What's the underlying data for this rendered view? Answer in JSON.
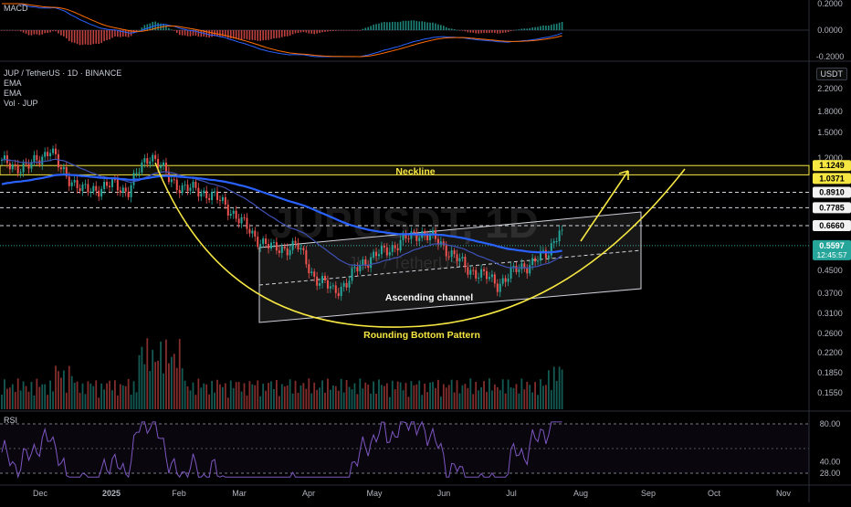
{
  "window": {
    "symbol_title": "JUP / TetherUS · 1D · BINANCE",
    "currency_badge": "USDT"
  },
  "indicators": {
    "ema1": "EMA",
    "ema2": "EMA",
    "volume": "Vol · JUP",
    "macd": "MACD",
    "rsi": "RSI"
  },
  "watermark": {
    "main": "JUPUSDT, 1D",
    "sub": "JUP / TetherUS"
  },
  "annotations": {
    "neckline": "Neckline",
    "ascending_channel": "Ascending channel",
    "rounding_bottom": "Rounding Bottom Pattern"
  },
  "colors": {
    "up": "#26a69a",
    "down": "#ef5350",
    "ema_slow": "#2962ff",
    "ema_fast": "#3f51b5",
    "annotation": "#f5e642",
    "rsi_line": "#7e57c2",
    "price_badge": "#26a69a"
  },
  "chart_data": [
    {
      "type": "candlestick",
      "title": "JUP / TetherUS · 1D · BINANCE",
      "x_labels": [
        "Dec",
        "2025",
        "Feb",
        "Mar",
        "Apr",
        "May",
        "Jun",
        "Jul",
        "Aug",
        "Sep",
        "Oct",
        "Nov"
      ],
      "y_scale": "log",
      "y_ticks": [
        "2.2000",
        "1.8000",
        "1.5000",
        "1.2000",
        "0.4500",
        "0.3700",
        "0.3100",
        "0.2600",
        "0.2200",
        "0.1850",
        "0.1550"
      ],
      "price_levels": [
        "1.1249",
        "1.0371",
        "0.8910",
        "0.7785",
        "0.6660"
      ],
      "last_price": "0.5597",
      "countdown": "12:45:57",
      "ylim": [
        0.14,
        2.4
      ]
    },
    {
      "type": "line",
      "title": "MACD",
      "y_ticks": [
        "0.2000",
        "0.0000",
        "-0.2000"
      ],
      "ylim": [
        -0.25,
        0.25
      ]
    },
    {
      "type": "line",
      "title": "RSI",
      "y_ticks": [
        "80.00",
        "40.00",
        "28.00"
      ],
      "ylim": [
        20,
        90
      ]
    }
  ]
}
